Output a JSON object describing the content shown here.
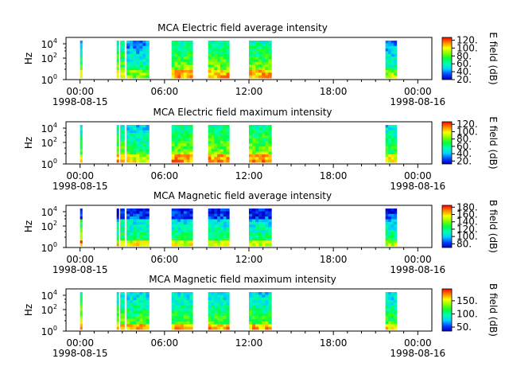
{
  "chart_data": [
    {
      "type": "heatmap",
      "title": "MCA  Electric field average intensity",
      "ylabel": "Hz",
      "ytick_base": "10",
      "yticks": [
        {
          "exp": "0"
        },
        {
          "exp": "2"
        },
        {
          "exp": "4"
        }
      ],
      "xticks": [
        {
          "time": "00:00",
          "date": "1998-08-15"
        },
        {
          "time": "06:00",
          "date": ""
        },
        {
          "time": "12:00",
          "date": ""
        },
        {
          "time": "18:00",
          "date": ""
        },
        {
          "time": "00:00",
          "date": "1998-08-16"
        }
      ],
      "xlim_hours": [
        -1,
        25
      ],
      "colorbar": {
        "label": "E field (dB)",
        "range": [
          20,
          127
        ],
        "ticks": [
          "20.",
          "40.",
          "60.",
          "80.",
          "100.",
          "120."
        ]
      },
      "data_bursts": [
        {
          "start_h": 0.0,
          "end_h": 0.15,
          "level": 0.42
        },
        {
          "start_h": 2.6,
          "end_h": 2.75,
          "level": 0.5
        },
        {
          "start_h": 2.85,
          "end_h": 3.15,
          "level": 0.45
        },
        {
          "start_h": 3.3,
          "end_h": 4.9,
          "level": 0.3
        },
        {
          "start_h": 6.5,
          "end_h": 8.0,
          "level": 0.5
        },
        {
          "start_h": 9.1,
          "end_h": 10.6,
          "level": 0.5
        },
        {
          "start_h": 12.0,
          "end_h": 13.6,
          "level": 0.5
        },
        {
          "start_h": 21.7,
          "end_h": 22.5,
          "level": 0.32
        }
      ]
    },
    {
      "type": "heatmap",
      "title": "MCA  Electric field maximum intensity",
      "ylabel": "Hz",
      "ytick_base": "10",
      "yticks": [
        {
          "exp": "0"
        },
        {
          "exp": "2"
        },
        {
          "exp": "4"
        }
      ],
      "xticks": [
        {
          "time": "00:00",
          "date": "1998-08-15"
        },
        {
          "time": "06:00",
          "date": ""
        },
        {
          "time": "12:00",
          "date": ""
        },
        {
          "time": "18:00",
          "date": ""
        },
        {
          "time": "00:00",
          "date": "1998-08-16"
        }
      ],
      "xlim_hours": [
        -1,
        25
      ],
      "colorbar": {
        "label": "E field (dB)",
        "range": [
          12,
          127
        ],
        "ticks": [
          "20.",
          "40.",
          "60.",
          "80.",
          "100.",
          "120."
        ]
      },
      "data_bursts": [
        {
          "start_h": 0.0,
          "end_h": 0.15,
          "level": 0.45
        },
        {
          "start_h": 2.6,
          "end_h": 2.75,
          "level": 0.5
        },
        {
          "start_h": 2.85,
          "end_h": 3.15,
          "level": 0.48
        },
        {
          "start_h": 3.3,
          "end_h": 4.9,
          "level": 0.4
        },
        {
          "start_h": 6.5,
          "end_h": 8.0,
          "level": 0.52
        },
        {
          "start_h": 9.1,
          "end_h": 10.6,
          "level": 0.52
        },
        {
          "start_h": 12.0,
          "end_h": 13.6,
          "level": 0.52
        },
        {
          "start_h": 21.7,
          "end_h": 22.5,
          "level": 0.42
        }
      ]
    },
    {
      "type": "heatmap",
      "title": "MCA  Magnetic field average intensity",
      "ylabel": "Hz",
      "ytick_base": "10",
      "yticks": [
        {
          "exp": "0"
        },
        {
          "exp": "2"
        },
        {
          "exp": "4"
        }
      ],
      "xticks": [
        {
          "time": "00:00",
          "date": "1998-08-15"
        },
        {
          "time": "06:00",
          "date": ""
        },
        {
          "time": "12:00",
          "date": ""
        },
        {
          "time": "18:00",
          "date": ""
        },
        {
          "time": "00:00",
          "date": "1998-08-16"
        }
      ],
      "xlim_hours": [
        -1,
        25
      ],
      "colorbar": {
        "label": "B field (dB)",
        "range": [
          70,
          185
        ],
        "ticks": [
          "80.",
          "100.",
          "120.",
          "140.",
          "160.",
          "180."
        ]
      },
      "data_bursts": [
        {
          "start_h": 0.0,
          "end_h": 0.15,
          "level": 0.6
        },
        {
          "start_h": 2.6,
          "end_h": 2.75,
          "level": 0.45
        },
        {
          "start_h": 2.85,
          "end_h": 3.15,
          "level": 0.45
        },
        {
          "start_h": 3.3,
          "end_h": 4.9,
          "level": 0.42
        },
        {
          "start_h": 6.5,
          "end_h": 8.0,
          "level": 0.42
        },
        {
          "start_h": 9.1,
          "end_h": 10.6,
          "level": 0.42
        },
        {
          "start_h": 12.0,
          "end_h": 13.6,
          "level": 0.42
        },
        {
          "start_h": 21.7,
          "end_h": 22.5,
          "level": 0.4
        }
      ]
    },
    {
      "type": "heatmap",
      "title": "MCA  Magnetic field maximum intensity",
      "ylabel": "Hz",
      "ytick_base": "10",
      "yticks": [
        {
          "exp": "0"
        },
        {
          "exp": "2"
        },
        {
          "exp": "4"
        }
      ],
      "xticks": [
        {
          "time": "00:00",
          "date": "1998-08-15"
        },
        {
          "time": "06:00",
          "date": ""
        },
        {
          "time": "12:00",
          "date": ""
        },
        {
          "time": "18:00",
          "date": ""
        },
        {
          "time": "00:00",
          "date": "1998-08-16"
        }
      ],
      "xlim_hours": [
        -1,
        25
      ],
      "colorbar": {
        "label": "B field (dB)",
        "range": [
          35,
          195
        ],
        "ticks": [
          "50.",
          "100.",
          "150."
        ]
      },
      "data_bursts": [
        {
          "start_h": 0.0,
          "end_h": 0.15,
          "level": 0.65
        },
        {
          "start_h": 2.6,
          "end_h": 2.75,
          "level": 0.55
        },
        {
          "start_h": 2.85,
          "end_h": 3.15,
          "level": 0.55
        },
        {
          "start_h": 3.3,
          "end_h": 4.9,
          "level": 0.52
        },
        {
          "start_h": 6.5,
          "end_h": 8.0,
          "level": 0.52
        },
        {
          "start_h": 9.1,
          "end_h": 10.6,
          "level": 0.52
        },
        {
          "start_h": 12.0,
          "end_h": 13.6,
          "level": 0.52
        },
        {
          "start_h": 21.7,
          "end_h": 22.5,
          "level": 0.5
        }
      ]
    }
  ]
}
